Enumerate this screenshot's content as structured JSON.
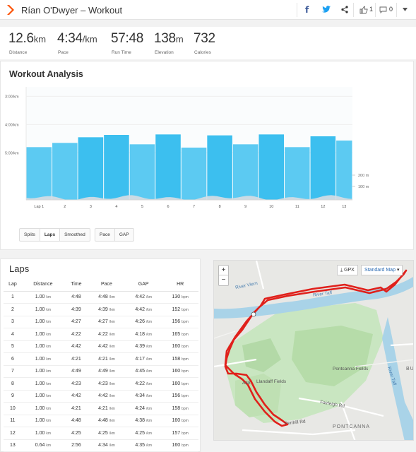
{
  "header": {
    "title": "Rían O'Dwyer – Workout",
    "likes": "1",
    "comments": "0",
    "brand_color": "#fc5200"
  },
  "stats": [
    {
      "value": "12.6",
      "unit": "km",
      "label": "Distance"
    },
    {
      "value": "4:34",
      "unit": "/km",
      "label": "Pace"
    },
    {
      "value": "57:48",
      "unit": "",
      "label": "Run Time"
    },
    {
      "value": "138",
      "unit": "m",
      "label": "Elevation"
    },
    {
      "value": "732",
      "unit": "",
      "label": "Calories"
    }
  ],
  "analysis": {
    "title": "Workout Analysis",
    "view_buttons": [
      "Splits",
      "Laps",
      "Smoothed"
    ],
    "active_view": "Laps",
    "metric_buttons": [
      "Pace",
      "GAP"
    ]
  },
  "chart_data": {
    "type": "bar",
    "categories": [
      "Lap 1",
      "2",
      "3",
      "4",
      "5",
      "6",
      "7",
      "8",
      "9",
      "10",
      "11",
      "12",
      "13"
    ],
    "values_seconds_per_km": [
      288,
      279,
      267,
      262,
      282,
      261,
      289,
      263,
      282,
      261,
      288,
      265,
      274
    ],
    "widths_km": [
      1,
      1,
      1,
      1,
      1,
      1,
      1,
      1,
      1,
      1,
      1,
      1,
      0.64
    ],
    "y_ticks": [
      "3:00/km",
      "4:00/km",
      "5:00/km"
    ],
    "y_tick_seconds": [
      180,
      240,
      300
    ],
    "elevation_ticks": [
      "200 m",
      "100 m"
    ],
    "bar_color": "#3cbfef",
    "bar_color_alt": "#5ccaf2",
    "axis_pace_top": 160,
    "axis_pace_bottom": 400
  },
  "laps": {
    "title": "Laps",
    "columns": [
      "Lap",
      "Distance",
      "Time",
      "Pace",
      "GAP",
      "HR"
    ],
    "rows": [
      {
        "lap": "1",
        "dist": "1.00",
        "time": "4:48",
        "pace": "4:48",
        "gap": "4:42",
        "hr": "130"
      },
      {
        "lap": "2",
        "dist": "1.00",
        "time": "4:39",
        "pace": "4:39",
        "gap": "4:42",
        "hr": "152"
      },
      {
        "lap": "3",
        "dist": "1.00",
        "time": "4:27",
        "pace": "4:27",
        "gap": "4:26",
        "hr": "156"
      },
      {
        "lap": "4",
        "dist": "1.00",
        "time": "4:22",
        "pace": "4:22",
        "gap": "4:18",
        "hr": "165"
      },
      {
        "lap": "5",
        "dist": "1.00",
        "time": "4:42",
        "pace": "4:42",
        "gap": "4:39",
        "hr": "160"
      },
      {
        "lap": "6",
        "dist": "1.00",
        "time": "4:21",
        "pace": "4:21",
        "gap": "4:17",
        "hr": "158"
      },
      {
        "lap": "7",
        "dist": "1.00",
        "time": "4:49",
        "pace": "4:49",
        "gap": "4:45",
        "hr": "160"
      },
      {
        "lap": "8",
        "dist": "1.00",
        "time": "4:23",
        "pace": "4:23",
        "gap": "4:22",
        "hr": "160"
      },
      {
        "lap": "9",
        "dist": "1.00",
        "time": "4:42",
        "pace": "4:42",
        "gap": "4:34",
        "hr": "156"
      },
      {
        "lap": "10",
        "dist": "1.00",
        "time": "4:21",
        "pace": "4:21",
        "gap": "4:24",
        "hr": "158"
      },
      {
        "lap": "11",
        "dist": "1.00",
        "time": "4:48",
        "pace": "4:48",
        "gap": "4:38",
        "hr": "160"
      },
      {
        "lap": "12",
        "dist": "1.00",
        "time": "4:25",
        "pace": "4:25",
        "gap": "4:25",
        "hr": "157"
      },
      {
        "lap": "13",
        "dist": "0.64",
        "time": "2:56",
        "pace": "4:34",
        "gap": "4:35",
        "hr": "160"
      }
    ],
    "unit_km": "km",
    "unit_pace": "/km",
    "unit_hr": "bpm"
  },
  "map": {
    "gpx_label": "GPX",
    "map_type": "Standard Map",
    "labels": {
      "river_viern": "River Viern",
      "river_taff": "River Taff",
      "river_taff_side": "River Taff",
      "pontcanna_fields": "Pontcanna Fields",
      "llandaff_fields": "Llandaff Fields",
      "fairleigh_rd": "Fairleigh Rd",
      "penhill_rd": "Penhill Rd",
      "pontcanna": "PONTCANNA",
      "a48": "A48",
      "bu": "BU"
    },
    "route_color": "#e0201b"
  }
}
